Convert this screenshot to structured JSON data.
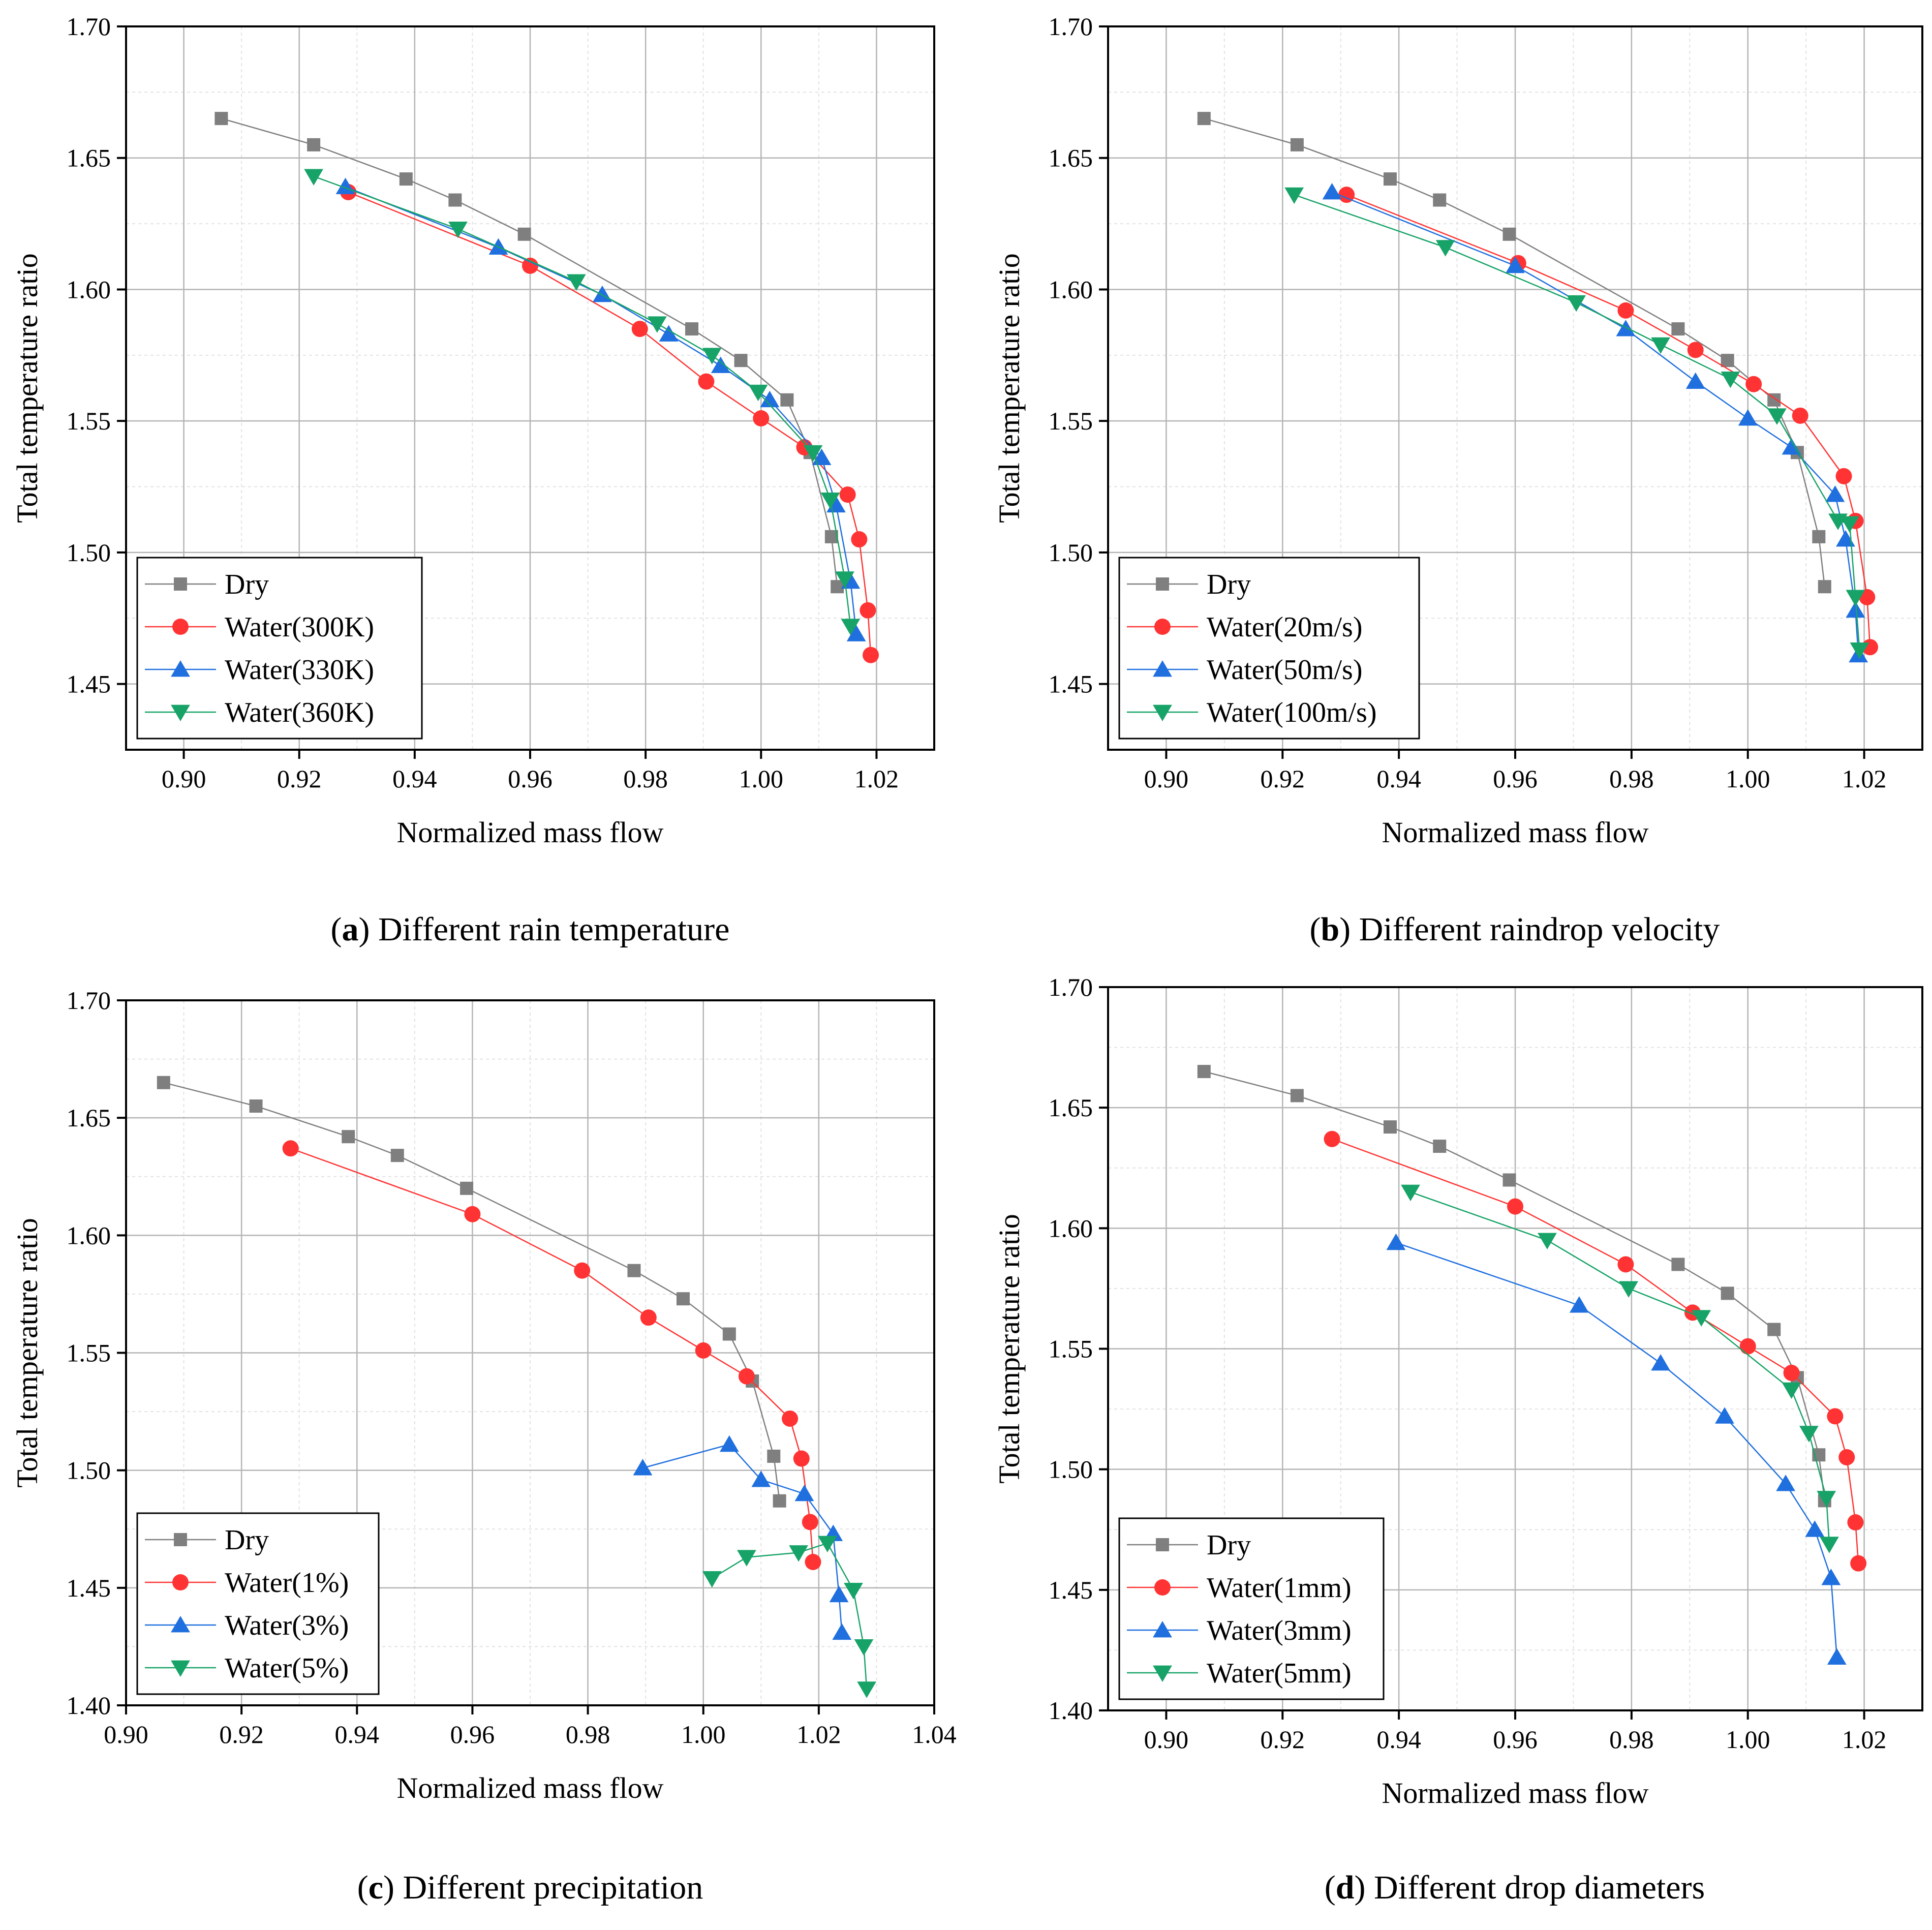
{
  "figure": {
    "panel_count": 4
  },
  "chart_data": [
    {
      "id": "a",
      "type": "line",
      "caption_letter": "(a)",
      "caption_text": " Different rain temperature",
      "xlabel": "Normalized mass flow",
      "ylabel": "Total temperature ratio",
      "xlim": [
        0.89,
        1.03
      ],
      "ylim": [
        1.425,
        1.7
      ],
      "xticks": [
        0.9,
        0.92,
        0.94,
        0.96,
        0.98,
        1.0,
        1.02
      ],
      "xtick_labels": [
        "0.90",
        "0.92",
        "0.94",
        "0.96",
        "0.98",
        "1.00",
        "1.02"
      ],
      "yticks": [
        1.45,
        1.5,
        1.55,
        1.6,
        1.65,
        1.7
      ],
      "ytick_labels": [
        "1.45",
        "1.50",
        "1.55",
        "1.60",
        "1.65",
        "1.70"
      ],
      "grid": true,
      "legend_position": "bottom-left",
      "series": [
        {
          "name": "Dry",
          "color": "#7f7f7f",
          "marker": "square",
          "x": [
            0.9065,
            0.9225,
            0.9385,
            0.947,
            0.959,
            0.988,
            0.9965,
            1.0045,
            1.0085,
            1.0122,
            1.0132
          ],
          "y": [
            1.665,
            1.655,
            1.642,
            1.634,
            1.621,
            1.585,
            1.573,
            1.558,
            1.538,
            1.506,
            1.487
          ]
        },
        {
          "name": "Water(300K)",
          "color": "#ff3333",
          "marker": "circle",
          "x": [
            0.9285,
            0.96,
            0.979,
            0.9905,
            1.0,
            1.0075,
            1.015,
            1.017,
            1.0185,
            1.019
          ],
          "y": [
            1.637,
            1.609,
            1.585,
            1.565,
            1.551,
            1.54,
            1.522,
            1.505,
            1.478,
            1.461
          ]
        },
        {
          "name": "Water(330K)",
          "color": "#1f6fdf",
          "marker": "triangle-up",
          "x": [
            0.928,
            0.9545,
            0.9725,
            0.984,
            0.993,
            1.0015,
            1.0105,
            1.013,
            1.0155,
            1.0165
          ],
          "y": [
            1.639,
            1.616,
            1.598,
            1.583,
            1.571,
            1.558,
            1.536,
            1.518,
            1.489,
            1.469
          ]
        },
        {
          "name": "Water(360K)",
          "color": "#17a367",
          "marker": "triangle-down",
          "x": [
            0.9225,
            0.9475,
            0.968,
            0.982,
            0.9915,
            0.9995,
            1.009,
            1.012,
            1.0145,
            1.0155
          ],
          "y": [
            1.643,
            1.623,
            1.603,
            1.587,
            1.575,
            1.561,
            1.538,
            1.52,
            1.49,
            1.472
          ]
        }
      ]
    },
    {
      "id": "b",
      "type": "line",
      "caption_letter": "(b)",
      "caption_text": " Different raindrop velocity",
      "xlabel": "Normalized mass flow",
      "ylabel": "Total temperature ratio",
      "xlim": [
        0.89,
        1.03
      ],
      "ylim": [
        1.425,
        1.7
      ],
      "xticks": [
        0.9,
        0.92,
        0.94,
        0.96,
        0.98,
        1.0,
        1.02
      ],
      "xtick_labels": [
        "0.90",
        "0.92",
        "0.94",
        "0.96",
        "0.98",
        "1.00",
        "1.02"
      ],
      "yticks": [
        1.45,
        1.5,
        1.55,
        1.6,
        1.65,
        1.7
      ],
      "ytick_labels": [
        "1.45",
        "1.50",
        "1.55",
        "1.60",
        "1.65",
        "1.70"
      ],
      "grid": true,
      "legend_position": "bottom-left",
      "series": [
        {
          "name": "Dry",
          "color": "#7f7f7f",
          "marker": "square",
          "x": [
            0.9065,
            0.9225,
            0.9385,
            0.947,
            0.959,
            0.988,
            0.9965,
            1.0045,
            1.0085,
            1.0122,
            1.0132
          ],
          "y": [
            1.665,
            1.655,
            1.642,
            1.634,
            1.621,
            1.585,
            1.573,
            1.558,
            1.538,
            1.506,
            1.487
          ]
        },
        {
          "name": "Water(20m/s)",
          "color": "#ff3333",
          "marker": "circle",
          "x": [
            0.931,
            0.9605,
            0.979,
            0.991,
            1.001,
            1.009,
            1.0165,
            1.0185,
            1.0205,
            1.021
          ],
          "y": [
            1.636,
            1.61,
            1.592,
            1.577,
            1.564,
            1.552,
            1.529,
            1.512,
            1.483,
            1.464
          ]
        },
        {
          "name": "Water(50m/s)",
          "color": "#1f6fdf",
          "marker": "triangle-up",
          "x": [
            0.9285,
            0.96,
            0.979,
            0.991,
            1.0,
            1.0075,
            1.015,
            1.0168,
            1.0185,
            1.019
          ],
          "y": [
            1.637,
            1.609,
            1.585,
            1.565,
            1.551,
            1.54,
            1.522,
            1.505,
            1.478,
            1.461
          ]
        },
        {
          "name": "Water(100m/s)",
          "color": "#17a367",
          "marker": "triangle-down",
          "x": [
            0.922,
            0.948,
            0.9705,
            0.985,
            0.997,
            1.005,
            1.0155,
            1.0175,
            1.0185,
            1.0192
          ],
          "y": [
            1.636,
            1.616,
            1.595,
            1.579,
            1.566,
            1.552,
            1.512,
            1.511,
            1.483,
            1.463
          ]
        }
      ]
    },
    {
      "id": "c",
      "type": "line",
      "caption_letter": "(c)",
      "caption_text": " Different precipitation",
      "xlabel": "Normalized mass flow",
      "ylabel": "Total temperature ratio",
      "xlim": [
        0.9,
        1.04
      ],
      "ylim": [
        1.4,
        1.7
      ],
      "xticks": [
        0.9,
        0.92,
        0.94,
        0.96,
        0.98,
        1.0,
        1.02,
        1.04
      ],
      "xtick_labels": [
        "0.90",
        "0.92",
        "0.94",
        "0.96",
        "0.98",
        "1.00",
        "1.02",
        "1.04"
      ],
      "yticks": [
        1.4,
        1.45,
        1.5,
        1.55,
        1.6,
        1.65,
        1.7
      ],
      "ytick_labels": [
        "1.40",
        "1.45",
        "1.50",
        "1.55",
        "1.60",
        "1.65",
        "1.70"
      ],
      "grid": true,
      "legend_position": "bottom-left",
      "series": [
        {
          "name": "Dry",
          "color": "#7f7f7f",
          "marker": "square",
          "x": [
            0.9065,
            0.9225,
            0.9385,
            0.947,
            0.959,
            0.988,
            0.9965,
            1.0045,
            1.0085,
            1.0122,
            1.0132
          ],
          "y": [
            1.665,
            1.655,
            1.642,
            1.634,
            1.62,
            1.585,
            1.573,
            1.558,
            1.538,
            1.506,
            1.487
          ]
        },
        {
          "name": "Water(1%)",
          "color": "#ff3333",
          "marker": "circle",
          "x": [
            0.9285,
            0.96,
            0.979,
            0.9905,
            1.0,
            1.0075,
            1.015,
            1.017,
            1.0185,
            1.019
          ],
          "y": [
            1.637,
            1.609,
            1.585,
            1.565,
            1.551,
            1.54,
            1.522,
            1.505,
            1.478,
            1.461
          ]
        },
        {
          "name": "Water(3%)",
          "color": "#1f6fdf",
          "marker": "triangle-up",
          "x": [
            0.9895,
            1.0045,
            1.01,
            1.0175,
            1.0225,
            1.0235,
            1.024
          ],
          "y": [
            1.501,
            1.511,
            1.496,
            1.49,
            1.473,
            1.447,
            1.431
          ]
        },
        {
          "name": "Water(5%)",
          "color": "#17a367",
          "marker": "triangle-down",
          "x": [
            1.0015,
            1.0075,
            1.0165,
            1.0215,
            1.026,
            1.0278,
            1.0283
          ],
          "y": [
            1.454,
            1.463,
            1.465,
            1.469,
            1.449,
            1.425,
            1.407
          ]
        }
      ]
    },
    {
      "id": "d",
      "type": "line",
      "caption_letter": "(d)",
      "caption_text": " Different drop diameters",
      "xlabel": "Normalized mass flow",
      "ylabel": "Total temperature ratio",
      "xlim": [
        0.89,
        1.03
      ],
      "ylim": [
        1.4,
        1.7
      ],
      "xticks": [
        0.9,
        0.92,
        0.94,
        0.96,
        0.98,
        1.0,
        1.02
      ],
      "xtick_labels": [
        "0.90",
        "0.92",
        "0.94",
        "0.96",
        "0.98",
        "1.00",
        "1.02"
      ],
      "yticks": [
        1.4,
        1.45,
        1.5,
        1.55,
        1.6,
        1.65,
        1.7
      ],
      "ytick_labels": [
        "1.40",
        "1.45",
        "1.50",
        "1.55",
        "1.60",
        "1.65",
        "1.70"
      ],
      "grid": true,
      "legend_position": "bottom-left",
      "series": [
        {
          "name": "Dry",
          "color": "#7f7f7f",
          "marker": "square",
          "x": [
            0.9065,
            0.9225,
            0.9385,
            0.947,
            0.959,
            0.988,
            0.9965,
            1.0045,
            1.0085,
            1.0122,
            1.0132
          ],
          "y": [
            1.665,
            1.655,
            1.642,
            1.634,
            1.62,
            1.585,
            1.573,
            1.558,
            1.538,
            1.506,
            1.487
          ]
        },
        {
          "name": "Water(1mm)",
          "color": "#ff3333",
          "marker": "circle",
          "x": [
            0.9285,
            0.96,
            0.979,
            0.9905,
            1.0,
            1.0075,
            1.015,
            1.017,
            1.0185,
            1.019
          ],
          "y": [
            1.637,
            1.609,
            1.585,
            1.565,
            1.551,
            1.54,
            1.522,
            1.505,
            1.478,
            1.461
          ]
        },
        {
          "name": "Water(3mm)",
          "color": "#1f6fdf",
          "marker": "triangle-up",
          "x": [
            0.9395,
            0.971,
            0.985,
            0.996,
            1.0065,
            1.0115,
            1.0143,
            1.0153
          ],
          "y": [
            1.594,
            1.568,
            1.544,
            1.522,
            1.494,
            1.475,
            1.455,
            1.422
          ]
        },
        {
          "name": "Water(5mm)",
          "color": "#17a367",
          "marker": "triangle-down",
          "x": [
            0.942,
            0.9655,
            0.9795,
            0.992,
            1.0075,
            1.0105,
            1.0135,
            1.014
          ],
          "y": [
            1.615,
            1.595,
            1.575,
            1.563,
            1.533,
            1.515,
            1.488,
            1.469
          ]
        }
      ]
    }
  ]
}
